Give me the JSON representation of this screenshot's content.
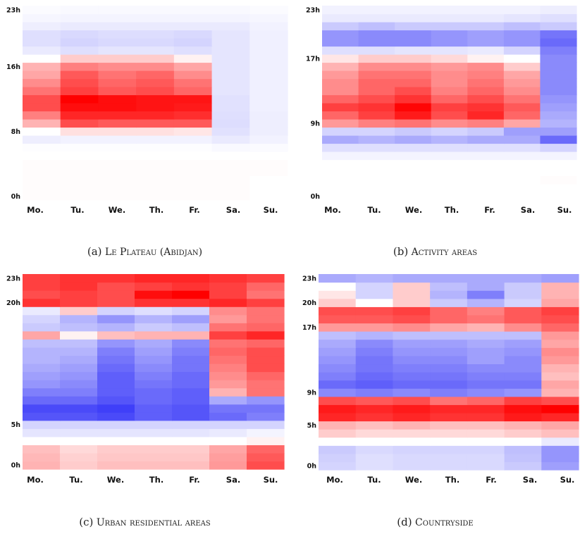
{
  "chart_data": [
    {
      "type": "heatmap",
      "days": [
        "Mo.",
        "Tu.",
        "We.",
        "Th.",
        "Fr.",
        "Sa.",
        "Su."
      ],
      "hour_ticks": [
        "0h",
        "8h",
        "16h",
        "23h"
      ],
      "caption_label": "(a)",
      "caption_text": "Le Plateau (Abidjan)",
      "color_scale": {
        "negative": "#2a2af8",
        "neutral": "#ffffff",
        "positive": "#ff0000"
      },
      "values_by_hour": [
        [
          0.01,
          0.01,
          0.01,
          0.01,
          0.01,
          0.01,
          0.0
        ],
        [
          0.01,
          0.01,
          0.01,
          0.01,
          0.01,
          0.01,
          0.0
        ],
        [
          0.01,
          0.01,
          0.01,
          0.01,
          0.01,
          0.01,
          0.0
        ],
        [
          0.01,
          0.01,
          0.01,
          0.01,
          0.01,
          0.01,
          0.01
        ],
        [
          0.01,
          0.01,
          0.01,
          0.01,
          0.01,
          0.01,
          0.01
        ],
        [
          0.0,
          0.0,
          0.0,
          0.0,
          0.0,
          0.0,
          0.0
        ],
        [
          -0.01,
          -0.01,
          -0.01,
          -0.01,
          -0.01,
          -0.03,
          -0.02
        ],
        [
          -0.08,
          -0.06,
          -0.06,
          -0.06,
          -0.06,
          -0.1,
          -0.06
        ],
        [
          0.0,
          0.12,
          0.12,
          0.12,
          0.1,
          -0.14,
          -0.08
        ],
        [
          0.3,
          0.7,
          0.65,
          0.65,
          0.65,
          -0.16,
          -0.08
        ],
        [
          0.5,
          0.85,
          0.85,
          0.85,
          0.82,
          -0.15,
          -0.08
        ],
        [
          0.7,
          0.95,
          0.95,
          0.92,
          0.9,
          -0.14,
          -0.07
        ],
        [
          0.7,
          1.0,
          0.95,
          0.92,
          0.92,
          -0.14,
          -0.07
        ],
        [
          0.55,
          0.75,
          0.65,
          0.7,
          0.6,
          -0.12,
          -0.07
        ],
        [
          0.45,
          0.7,
          0.6,
          0.65,
          0.55,
          -0.12,
          -0.07
        ],
        [
          0.35,
          0.65,
          0.55,
          0.6,
          0.45,
          -0.12,
          -0.07
        ],
        [
          0.3,
          0.5,
          0.45,
          0.45,
          0.35,
          -0.12,
          -0.07
        ],
        [
          0.0,
          0.2,
          0.2,
          0.2,
          0.05,
          -0.12,
          -0.07
        ],
        [
          -0.1,
          -0.15,
          -0.12,
          -0.12,
          -0.15,
          -0.12,
          -0.07
        ],
        [
          -0.15,
          -0.2,
          -0.18,
          -0.18,
          -0.2,
          -0.12,
          -0.07
        ],
        [
          -0.15,
          -0.18,
          -0.16,
          -0.16,
          -0.18,
          -0.12,
          -0.07
        ],
        [
          -0.08,
          -0.1,
          -0.1,
          -0.1,
          -0.1,
          -0.1,
          -0.06
        ],
        [
          -0.04,
          -0.05,
          -0.05,
          -0.05,
          -0.05,
          -0.05,
          -0.04
        ],
        [
          -0.02,
          -0.03,
          -0.03,
          -0.03,
          -0.03,
          -0.03,
          -0.02
        ]
      ]
    },
    {
      "type": "heatmap",
      "days": [
        "Mo.",
        "Tu.",
        "We.",
        "Th.",
        "Fr.",
        "Sa.",
        "Su."
      ],
      "hour_ticks": [
        "0h",
        "9h",
        "17h",
        "23h"
      ],
      "caption_label": "(b)",
      "caption_text": "Activity areas",
      "color_scale": {
        "negative": "#2a2af8",
        "neutral": "#ffffff",
        "positive": "#ff0000"
      },
      "values_by_hour": [
        [
          0.0,
          0.0,
          0.0,
          0.0,
          0.0,
          0.0,
          0.0
        ],
        [
          0.0,
          0.0,
          0.0,
          0.0,
          0.0,
          0.0,
          0.0
        ],
        [
          0.0,
          0.0,
          0.0,
          0.0,
          0.0,
          0.0,
          0.01
        ],
        [
          0.0,
          0.0,
          0.0,
          0.0,
          0.0,
          0.0,
          0.0
        ],
        [
          0.0,
          0.0,
          0.0,
          0.0,
          0.0,
          0.0,
          0.0
        ],
        [
          -0.05,
          -0.05,
          -0.05,
          -0.05,
          -0.05,
          -0.05,
          -0.05
        ],
        [
          -0.15,
          -0.15,
          -0.15,
          -0.15,
          -0.15,
          -0.15,
          -0.2
        ],
        [
          -0.4,
          -0.35,
          -0.4,
          -0.35,
          -0.4,
          -0.4,
          -0.7
        ],
        [
          -0.2,
          -0.2,
          -0.25,
          -0.2,
          -0.25,
          -0.45,
          -0.45
        ],
        [
          0.4,
          0.5,
          0.55,
          0.45,
          0.5,
          0.35,
          -0.35
        ],
        [
          0.6,
          0.75,
          0.9,
          0.7,
          0.85,
          0.6,
          -0.4
        ],
        [
          0.75,
          0.8,
          0.98,
          0.75,
          0.8,
          0.65,
          -0.45
        ],
        [
          0.6,
          0.7,
          0.8,
          0.6,
          0.7,
          0.55,
          -0.5
        ],
        [
          0.45,
          0.6,
          0.7,
          0.5,
          0.6,
          0.45,
          -0.55
        ],
        [
          0.45,
          0.6,
          0.6,
          0.45,
          0.55,
          0.4,
          -0.55
        ],
        [
          0.4,
          0.55,
          0.55,
          0.45,
          0.5,
          0.35,
          -0.55
        ],
        [
          0.3,
          0.45,
          0.45,
          0.4,
          0.45,
          0.2,
          -0.55
        ],
        [
          0.1,
          0.2,
          0.2,
          0.15,
          0.05,
          0.0,
          -0.55
        ],
        [
          -0.15,
          -0.15,
          -0.12,
          -0.12,
          -0.1,
          -0.2,
          -0.6
        ],
        [
          -0.5,
          -0.55,
          -0.55,
          -0.5,
          -0.45,
          -0.5,
          -0.7
        ],
        [
          -0.5,
          -0.55,
          -0.55,
          -0.5,
          -0.45,
          -0.5,
          -0.65
        ],
        [
          -0.25,
          -0.3,
          -0.25,
          -0.25,
          -0.25,
          -0.3,
          -0.25
        ],
        [
          -0.1,
          -0.1,
          -0.1,
          -0.1,
          -0.1,
          -0.12,
          -0.15
        ],
        [
          -0.06,
          -0.06,
          -0.06,
          -0.06,
          -0.06,
          -0.06,
          -0.08
        ]
      ]
    },
    {
      "type": "heatmap",
      "days": [
        "Mo.",
        "Tu.",
        "We.",
        "Th.",
        "Fr.",
        "Sa.",
        "Su."
      ],
      "hour_ticks": [
        "0h",
        "5h",
        "20h",
        "23h"
      ],
      "caption_label": "(c)",
      "caption_text": "Urban residential areas",
      "color_scale": {
        "negative": "#2a2af8",
        "neutral": "#ffffff",
        "positive": "#ff0000"
      },
      "values_by_hour": [
        [
          0.3,
          0.2,
          0.25,
          0.25,
          0.25,
          0.4,
          0.7
        ],
        [
          0.28,
          0.18,
          0.22,
          0.22,
          0.22,
          0.38,
          0.65
        ],
        [
          0.25,
          0.15,
          0.2,
          0.2,
          0.2,
          0.35,
          0.6
        ],
        [
          0.0,
          0.0,
          0.0,
          0.0,
          0.0,
          0.0,
          0.05
        ],
        [
          -0.12,
          -0.12,
          -0.12,
          -0.12,
          -0.12,
          -0.1,
          -0.05
        ],
        [
          -0.2,
          -0.2,
          -0.2,
          -0.2,
          -0.2,
          -0.2,
          -0.2
        ],
        [
          -0.8,
          -0.8,
          -0.85,
          -0.75,
          -0.8,
          -0.7,
          -0.6
        ],
        [
          -0.85,
          -0.85,
          -0.9,
          -0.75,
          -0.8,
          -0.65,
          -0.65
        ],
        [
          -0.7,
          -0.7,
          -0.8,
          -0.7,
          -0.75,
          -0.4,
          -0.5
        ],
        [
          -0.6,
          -0.6,
          -0.75,
          -0.7,
          -0.75,
          0.3,
          0.55
        ],
        [
          -0.5,
          -0.55,
          -0.75,
          -0.65,
          -0.7,
          0.4,
          0.55
        ],
        [
          -0.45,
          -0.5,
          -0.75,
          -0.6,
          -0.7,
          0.45,
          0.6
        ],
        [
          -0.4,
          -0.45,
          -0.7,
          -0.55,
          -0.65,
          0.5,
          0.7
        ],
        [
          -0.35,
          -0.4,
          -0.65,
          -0.5,
          -0.65,
          0.55,
          0.7
        ],
        [
          -0.35,
          -0.35,
          -0.6,
          -0.45,
          -0.6,
          0.6,
          0.7
        ],
        [
          -0.3,
          -0.3,
          -0.5,
          -0.4,
          -0.55,
          0.55,
          0.6
        ],
        [
          0.35,
          0.05,
          0.25,
          0.3,
          0.3,
          0.75,
          0.85
        ],
        [
          -0.25,
          -0.3,
          -0.35,
          -0.25,
          -0.3,
          0.55,
          0.6
        ],
        [
          -0.2,
          -0.35,
          -0.5,
          -0.35,
          -0.45,
          0.4,
          0.55
        ],
        [
          -0.1,
          0.2,
          -0.2,
          -0.15,
          -0.2,
          0.45,
          0.55
        ],
        [
          0.8,
          0.75,
          0.7,
          0.8,
          0.8,
          0.85,
          0.75
        ],
        [
          0.7,
          0.75,
          0.7,
          0.95,
          1.0,
          0.75,
          0.55
        ],
        [
          0.75,
          0.8,
          0.7,
          0.75,
          0.8,
          0.75,
          0.6
        ],
        [
          0.75,
          0.8,
          0.8,
          0.85,
          0.85,
          0.8,
          0.75
        ]
      ]
    },
    {
      "type": "heatmap",
      "days": [
        "Mo.",
        "Tu.",
        "We.",
        "Th.",
        "Fr.",
        "Sa.",
        "Su."
      ],
      "hour_ticks": [
        "0h",
        "5h",
        "9h",
        "17h",
        "20h",
        "23h"
      ],
      "caption_label": "(d)",
      "caption_text": "Countryside",
      "color_scale": {
        "negative": "#2a2af8",
        "neutral": "#ffffff",
        "positive": "#ff0000"
      },
      "values_by_hour": [
        [
          -0.2,
          -0.15,
          -0.18,
          -0.18,
          -0.18,
          -0.25,
          -0.45
        ],
        [
          -0.22,
          -0.15,
          -0.18,
          -0.18,
          -0.18,
          -0.28,
          -0.5
        ],
        [
          -0.25,
          -0.18,
          -0.2,
          -0.2,
          -0.2,
          -0.3,
          -0.5
        ],
        [
          0.0,
          0.0,
          0.0,
          0.0,
          0.0,
          0.0,
          -0.1
        ],
        [
          0.2,
          0.15,
          0.15,
          0.15,
          0.15,
          0.2,
          0.25
        ],
        [
          0.3,
          0.25,
          0.3,
          0.25,
          0.25,
          0.3,
          0.35
        ],
        [
          0.85,
          0.8,
          0.85,
          0.8,
          0.8,
          0.9,
          0.85
        ],
        [
          0.9,
          0.85,
          0.9,
          0.85,
          0.85,
          0.95,
          1.0
        ],
        [
          0.7,
          0.65,
          0.7,
          0.55,
          0.6,
          0.75,
          0.7
        ],
        [
          -0.55,
          -0.6,
          -0.55,
          -0.6,
          -0.55,
          -0.5,
          0.3
        ],
        [
          -0.7,
          -0.75,
          -0.7,
          -0.7,
          -0.65,
          -0.65,
          0.35
        ],
        [
          -0.6,
          -0.7,
          -0.65,
          -0.65,
          -0.6,
          -0.6,
          0.25
        ],
        [
          -0.55,
          -0.65,
          -0.6,
          -0.6,
          -0.55,
          -0.55,
          0.3
        ],
        [
          -0.5,
          -0.65,
          -0.55,
          -0.55,
          -0.45,
          -0.55,
          0.4
        ],
        [
          -0.45,
          -0.6,
          -0.5,
          -0.5,
          -0.45,
          -0.5,
          0.45
        ],
        [
          -0.4,
          -0.55,
          -0.45,
          -0.45,
          -0.4,
          -0.45,
          0.35
        ],
        [
          -0.3,
          -0.35,
          -0.3,
          -0.3,
          -0.3,
          -0.3,
          0.4
        ],
        [
          0.4,
          0.4,
          0.45,
          0.35,
          0.3,
          0.45,
          0.6
        ],
        [
          0.65,
          0.65,
          0.7,
          0.6,
          0.55,
          0.65,
          0.7
        ],
        [
          0.7,
          0.7,
          0.75,
          0.6,
          0.5,
          0.65,
          0.75
        ],
        [
          0.2,
          0.0,
          0.2,
          -0.25,
          -0.35,
          -0.2,
          0.35
        ],
        [
          0.1,
          -0.2,
          0.2,
          -0.35,
          -0.6,
          -0.25,
          0.3
        ],
        [
          0.0,
          -0.2,
          0.2,
          -0.3,
          -0.4,
          -0.25,
          0.3
        ],
        [
          -0.4,
          -0.35,
          -0.4,
          -0.4,
          -0.4,
          -0.4,
          -0.45
        ]
      ]
    }
  ]
}
